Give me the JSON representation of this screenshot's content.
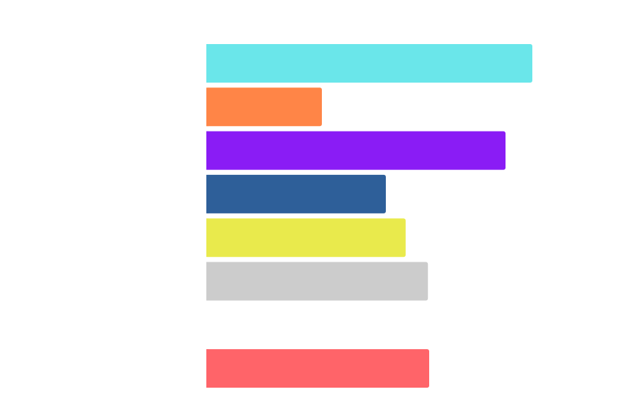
{
  "chart_data": {
    "type": "bar",
    "orientation": "horizontal",
    "title": "",
    "xlabel": "",
    "ylabel": "",
    "xlim": [
      0,
      100
    ],
    "grid": false,
    "legend": "none",
    "rows": [
      {
        "value": 79,
        "color": "#6ae6ea"
      },
      {
        "value": 28,
        "color": "#ff8547"
      },
      {
        "value": 72.5,
        "color": "#8a1cf5"
      },
      {
        "value": 43.5,
        "color": "#2e5f99"
      },
      {
        "value": 48.3,
        "color": "#e9ea4c"
      },
      {
        "value": 53.7,
        "color": "#cccccc"
      },
      {
        "value": null,
        "color": ""
      },
      {
        "value": 54,
        "color": "#ff6469"
      }
    ]
  }
}
